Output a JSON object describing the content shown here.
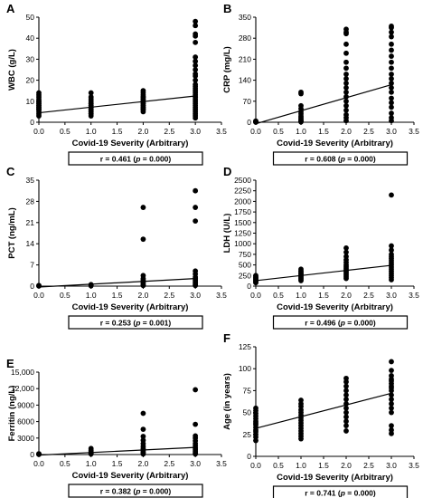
{
  "chart_data": [
    {
      "type": "scatter",
      "panel": "A",
      "xlabel": "Covid-19 Severity (Arbitrary)",
      "ylabel": "WBC (g/L)",
      "xlim": [
        0,
        3.5
      ],
      "ylim": [
        0,
        50
      ],
      "xticks": [
        "0.0",
        "0.5",
        "1.0",
        "1.5",
        "2.0",
        "2.5",
        "3.0",
        "3.5"
      ],
      "yticks": [
        "0",
        "10",
        "20",
        "30",
        "40",
        "50"
      ],
      "ytick_values": [
        0,
        10,
        20,
        30,
        40,
        50
      ],
      "groups": [
        {
          "x": 0,
          "values": [
            3,
            4,
            5,
            6,
            6,
            7,
            7,
            8,
            8,
            9,
            9,
            10,
            10,
            11,
            12,
            13,
            14
          ]
        },
        {
          "x": 1,
          "values": [
            3,
            4,
            4,
            5,
            5,
            6,
            6,
            7,
            7,
            8,
            8,
            9,
            9,
            10,
            11,
            12,
            14
          ]
        },
        {
          "x": 2,
          "values": [
            5,
            6,
            6,
            7,
            7,
            8,
            8,
            9,
            9,
            10,
            10,
            11,
            11,
            12,
            12,
            13,
            14,
            15
          ]
        },
        {
          "x": 3,
          "values": [
            2,
            3,
            4,
            5,
            6,
            7,
            8,
            9,
            10,
            11,
            12,
            13,
            14,
            15,
            16,
            17,
            18,
            20,
            22,
            23,
            25,
            27,
            29,
            31,
            38,
            41,
            42,
            46,
            48
          ]
        }
      ],
      "fit_line": {
        "x": [
          0,
          3
        ],
        "y": [
          4.5,
          12.5
        ]
      },
      "stat": {
        "r": "r = 0.461",
        "p": "p = 0.000"
      }
    },
    {
      "type": "scatter",
      "panel": "B",
      "xlabel": "Covid-19 Severity (Arbitrary)",
      "ylabel": "CRP (mg/L)",
      "xlim": [
        0,
        3.5
      ],
      "ylim": [
        0,
        350
      ],
      "xticks": [
        "0.0",
        "0.5",
        "1.0",
        "1.5",
        "2.0",
        "2.5",
        "3.0",
        "3.5"
      ],
      "yticks": [
        "0",
        "70",
        "140",
        "210",
        "280",
        "350"
      ],
      "ytick_values": [
        0,
        70,
        140,
        210,
        280,
        350
      ],
      "groups": [
        {
          "x": 0,
          "values": [
            0,
            1,
            2,
            3,
            4
          ]
        },
        {
          "x": 1,
          "values": [
            1,
            3,
            6,
            10,
            15,
            20,
            28,
            35,
            45,
            55,
            95,
            100
          ]
        },
        {
          "x": 2,
          "values": [
            5,
            15,
            25,
            40,
            55,
            70,
            85,
            100,
            115,
            130,
            145,
            160,
            180,
            200,
            230,
            260,
            295,
            300,
            310
          ]
        },
        {
          "x": 3,
          "values": [
            5,
            15,
            30,
            50,
            65,
            80,
            100,
            115,
            130,
            145,
            160,
            180,
            200,
            220,
            240,
            260,
            285,
            300,
            315,
            320
          ]
        }
      ],
      "fit_line": {
        "x": [
          0,
          3
        ],
        "y": [
          -5,
          125
        ]
      },
      "stat": {
        "r": "r = 0.608",
        "p": "p = 0.000"
      }
    },
    {
      "type": "scatter",
      "panel": "C",
      "xlabel": "Covid-19 Severity (Arbitrary)",
      "ylabel": "PCT (ng/mL)",
      "xlim": [
        0,
        3.5
      ],
      "ylim": [
        0,
        35
      ],
      "xticks": [
        "0.0",
        "0.5",
        "1.0",
        "1.5",
        "2.0",
        "2.5",
        "3.0",
        "3.5"
      ],
      "yticks": [
        "0",
        "7",
        "14",
        "21",
        "28",
        "35"
      ],
      "ytick_values": [
        0,
        7,
        14,
        21,
        28,
        35
      ],
      "groups": [
        {
          "x": 0,
          "values": [
            0.05,
            0.1,
            0.2
          ]
        },
        {
          "x": 1,
          "values": [
            0.1,
            0.3,
            0.5
          ]
        },
        {
          "x": 2,
          "values": [
            0.2,
            0.5,
            1,
            1.5,
            2,
            2.5,
            3.5,
            15.5,
            26
          ]
        },
        {
          "x": 3,
          "values": [
            0.2,
            0.5,
            1,
            1.5,
            2,
            2.5,
            3,
            4,
            5,
            21.5,
            26,
            31.5
          ]
        }
      ],
      "fit_line": {
        "x": [
          0,
          3
        ],
        "y": [
          -0.3,
          2.5
        ]
      },
      "stat": {
        "r": "r = 0.253",
        "p": "p = 0.001"
      }
    },
    {
      "type": "scatter",
      "panel": "D",
      "xlabel": "Covid-19 Severity (Arbitrary)",
      "ylabel": "LDH (U/L)",
      "xlim": [
        0,
        3.5
      ],
      "ylim": [
        0,
        2500
      ],
      "xticks": [
        "0.0",
        "0.5",
        "1.0",
        "1.5",
        "2.0",
        "2.5",
        "3.0",
        "3.5"
      ],
      "yticks": [
        "0",
        "250",
        "500",
        "750",
        "1000",
        "1250",
        "1500",
        "1750",
        "2000",
        "2250",
        "2500"
      ],
      "ytick_values": [
        0,
        250,
        500,
        750,
        1000,
        1250,
        1500,
        1750,
        2000,
        2250,
        2500
      ],
      "groups": [
        {
          "x": 0,
          "values": [
            80,
            100,
            120,
            140,
            160,
            180,
            200,
            220,
            250
          ]
        },
        {
          "x": 1,
          "values": [
            130,
            160,
            190,
            220,
            250,
            280,
            300,
            330,
            360,
            400
          ]
        },
        {
          "x": 2,
          "values": [
            180,
            220,
            260,
            300,
            340,
            380,
            420,
            460,
            500,
            560,
            620,
            700,
            800,
            900
          ]
        },
        {
          "x": 3,
          "values": [
            150,
            200,
            250,
            300,
            350,
            400,
            450,
            500,
            550,
            600,
            650,
            700,
            750,
            850,
            950,
            2150
          ]
        }
      ],
      "fit_line": {
        "x": [
          0,
          3
        ],
        "y": [
          130,
          490
        ]
      },
      "stat": {
        "r": "r = 0.496",
        "p": "p = 0.000"
      }
    },
    {
      "type": "scatter",
      "panel": "E",
      "xlabel": "Covid-19 Severity (Arbitrary)",
      "ylabel": "Ferritin (ng/L)",
      "xlim": [
        0,
        3.5
      ],
      "ylim": [
        0,
        15000
      ],
      "xticks": [
        "0.0",
        "0.5",
        "1.0",
        "1.5",
        "2.0",
        "2.5",
        "3.0",
        "3.5"
      ],
      "yticks": [
        "0",
        "3000",
        "6000",
        "9000",
        "12,000",
        "15,000"
      ],
      "ytick_values": [
        0,
        3000,
        6000,
        9000,
        12000,
        15000
      ],
      "groups": [
        {
          "x": 0,
          "values": [
            20,
            50,
            100,
            150
          ]
        },
        {
          "x": 1,
          "values": [
            100,
            200,
            300,
            500,
            800,
            1100
          ]
        },
        {
          "x": 2,
          "values": [
            100,
            300,
            500,
            800,
            1100,
            1500,
            2000,
            2600,
            3300,
            4600,
            7500
          ]
        },
        {
          "x": 3,
          "values": [
            100,
            300,
            600,
            900,
            1200,
            1600,
            2000,
            2500,
            3000,
            3400,
            5500,
            11800
          ]
        }
      ],
      "fit_line": {
        "x": [
          0,
          3
        ],
        "y": [
          -100,
          1300
        ]
      },
      "stat": {
        "r": "r = 0.382",
        "p": "p = 0.000"
      }
    },
    {
      "type": "scatter",
      "panel": "F",
      "xlabel": "Covid-19 Severity (Arbitrary)",
      "ylabel": "Age (in years)",
      "xlim": [
        0,
        3.5
      ],
      "ylim": [
        0,
        125
      ],
      "xticks": [
        "0.0",
        "0.5",
        "1.0",
        "1.5",
        "2.0",
        "2.5",
        "3.0",
        "3.5"
      ],
      "yticks": [
        "0",
        "25",
        "50",
        "75",
        "100",
        "125"
      ],
      "ytick_values": [
        0,
        25,
        50,
        75,
        100,
        125
      ],
      "groups": [
        {
          "x": 0,
          "values": [
            18,
            22,
            25,
            28,
            30,
            33,
            36,
            38,
            40,
            43,
            46,
            49,
            52,
            55
          ]
        },
        {
          "x": 1,
          "values": [
            20,
            23,
            26,
            29,
            32,
            35,
            38,
            41,
            44,
            47,
            50,
            53,
            57,
            60,
            64
          ]
        },
        {
          "x": 2,
          "values": [
            29,
            35,
            40,
            45,
            50,
            55,
            60,
            65,
            70,
            75,
            80,
            85,
            89
          ]
        },
        {
          "x": 3,
          "values": [
            26,
            30,
            35,
            50,
            55,
            60,
            65,
            70,
            75,
            78,
            80,
            83,
            86,
            88,
            92,
            98,
            108
          ]
        }
      ],
      "fit_line": {
        "x": [
          0,
          3
        ],
        "y": [
          32,
          72
        ]
      },
      "stat": {
        "r": "r = 0.741",
        "p": "p = 0.000"
      }
    }
  ]
}
